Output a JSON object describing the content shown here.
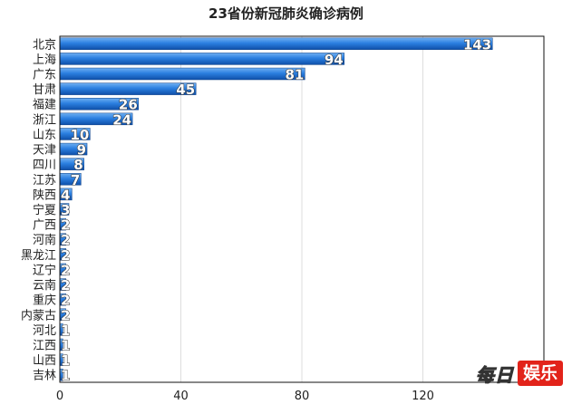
{
  "chart_data": {
    "type": "bar",
    "orientation": "horizontal",
    "title": "23省份新冠肺炎确诊病例",
    "xlabel": "",
    "ylabel": "",
    "xlim": [
      0,
      160
    ],
    "xticks": [
      0,
      40,
      80,
      120
    ],
    "grid": true,
    "categories": [
      "北京",
      "上海",
      "广东",
      "甘肃",
      "福建",
      "浙江",
      "山东",
      "天津",
      "四川",
      "江苏",
      "陕西",
      "宁夏",
      "广西",
      "河南",
      "黑龙江",
      "辽宁",
      "云南",
      "重庆",
      "内蒙古",
      "河北",
      "江西",
      "山西",
      "吉林"
    ],
    "values": [
      143,
      94,
      81,
      45,
      26,
      24,
      10,
      9,
      8,
      7,
      4,
      3,
      2,
      2,
      2,
      2,
      2,
      2,
      2,
      1,
      1,
      1,
      1
    ],
    "bar_color": "#1f6fd0"
  },
  "watermark": {
    "text_cn": "每日",
    "text_box": "娱乐"
  }
}
